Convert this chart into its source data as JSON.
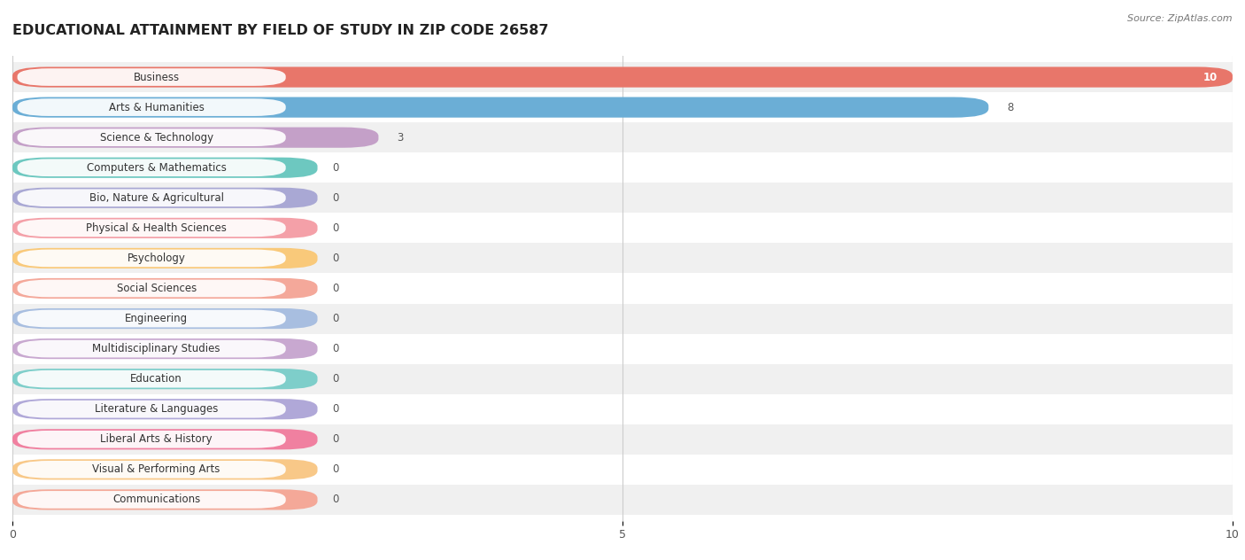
{
  "title": "EDUCATIONAL ATTAINMENT BY FIELD OF STUDY IN ZIP CODE 26587",
  "source": "Source: ZipAtlas.com",
  "categories": [
    "Business",
    "Arts & Humanities",
    "Science & Technology",
    "Computers & Mathematics",
    "Bio, Nature & Agricultural",
    "Physical & Health Sciences",
    "Psychology",
    "Social Sciences",
    "Engineering",
    "Multidisciplinary Studies",
    "Education",
    "Literature & Languages",
    "Liberal Arts & History",
    "Visual & Performing Arts",
    "Communications"
  ],
  "values": [
    10,
    8,
    3,
    0,
    0,
    0,
    0,
    0,
    0,
    0,
    0,
    0,
    0,
    0,
    0
  ],
  "bar_colors": [
    "#E8766A",
    "#6BAED6",
    "#C4A0C8",
    "#6DC8C0",
    "#A9A8D4",
    "#F4A0A8",
    "#F9C97A",
    "#F4A89A",
    "#A8BEE0",
    "#C8A8D0",
    "#7ECECA",
    "#B0A8D8",
    "#F080A0",
    "#F8C888",
    "#F4A898"
  ],
  "xlim": [
    0,
    10
  ],
  "xticks": [
    0,
    5,
    10
  ],
  "background_color": "#ffffff",
  "row_bg_even": "#f0f0f0",
  "row_bg_odd": "#ffffff",
  "title_fontsize": 11.5,
  "label_fontsize": 8.5,
  "value_fontsize": 8.5
}
